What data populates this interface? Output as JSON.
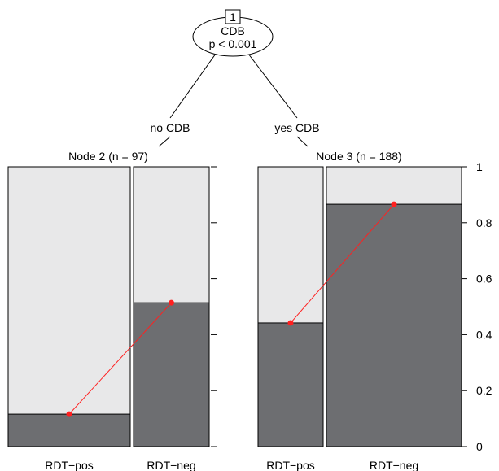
{
  "root": {
    "id": "1",
    "variable": "CDB",
    "pvalue": "p < 0.001"
  },
  "edges": {
    "left": "no CDB",
    "right": "yes CDB"
  },
  "nodes": [
    {
      "title": "Node 2 (n = 97)",
      "categories": [
        "RDT−pos",
        "RDT−neg"
      ],
      "bar_fractions": [
        0.116,
        0.514
      ],
      "widths": [
        0.455,
        0.295
      ]
    },
    {
      "title": "Node 3 (n = 188)",
      "categories": [
        "RDT−pos",
        "RDT−neg"
      ],
      "bar_fractions": [
        0.442,
        0.866
      ],
      "widths": [
        0.255,
        0.625
      ]
    }
  ],
  "y_axis": {
    "min": 0,
    "max": 1,
    "ticks": [
      0,
      0.2,
      0.4,
      0.6,
      0.8,
      1
    ],
    "tick_labels": [
      "0",
      "0.2",
      "0.4",
      "0.6",
      "0.8",
      "1"
    ]
  },
  "colors": {
    "filled": "#6d6e71",
    "empty": "#e8e8e9",
    "line": "#ff2020"
  },
  "chart_data": {
    "type": "bar",
    "series": [
      {
        "node": "Node 2 (n = 97)",
        "categories": [
          "RDT−pos",
          "RDT−neg"
        ],
        "values": [
          0.116,
          0.514
        ]
      },
      {
        "node": "Node 3 (n = 188)",
        "categories": [
          "RDT−pos",
          "RDT−neg"
        ],
        "values": [
          0.442,
          0.866
        ]
      }
    ],
    "ylim": [
      0,
      1
    ]
  }
}
